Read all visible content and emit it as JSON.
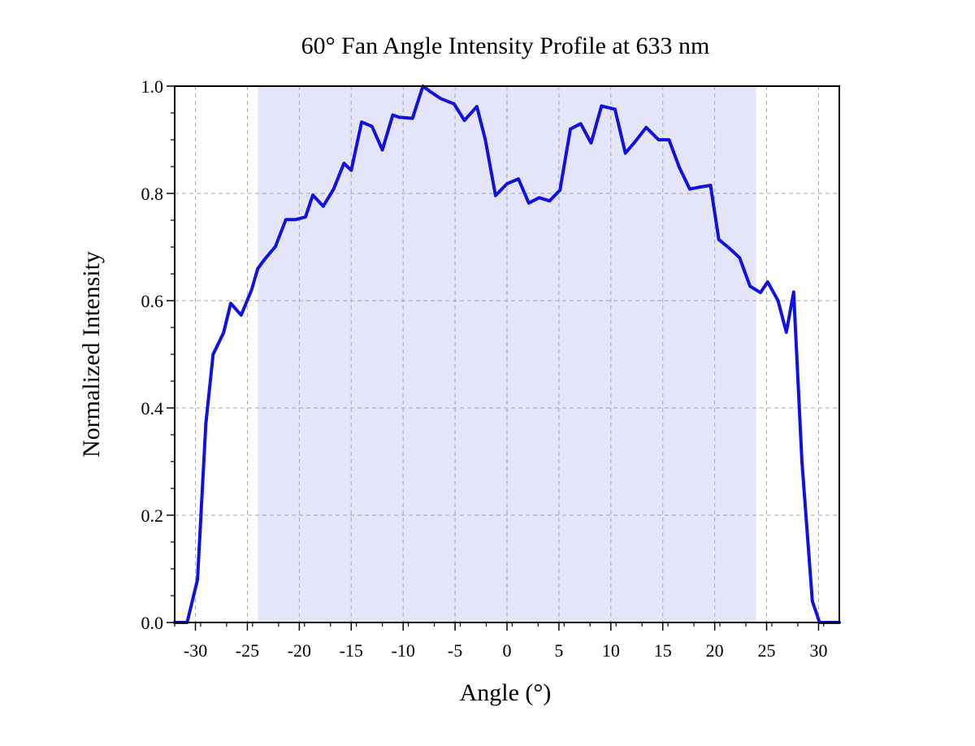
{
  "chart_data": {
    "type": "line",
    "title": "60° Fan Angle Intensity Profile at 633 nm",
    "xlabel": "Angle (°)",
    "ylabel": "Normalized Intensity",
    "xlim": [
      -32,
      32
    ],
    "ylim": [
      0,
      1.0
    ],
    "x_ticks": [
      -30,
      -25,
      -20,
      -15,
      -10,
      -5,
      0,
      5,
      10,
      15,
      20,
      25,
      30
    ],
    "y_ticks": [
      0.0,
      0.2,
      0.4,
      0.6,
      0.8,
      1.0
    ],
    "x_tick_labels": [
      "-30",
      "-25",
      "-20",
      "-15",
      "-10",
      "-5",
      "0",
      "5",
      "10",
      "15",
      "20",
      "25",
      "30"
    ],
    "y_tick_labels": [
      "0.0",
      "0.2",
      "0.4",
      "0.6",
      "0.8",
      "1.0"
    ],
    "grid": true,
    "shaded_region": {
      "x_start": -24,
      "x_end": 24,
      "color": "#e5e5fa"
    },
    "series": [
      {
        "color": "#1010e0",
        "x": [
          -32,
          -30.8,
          -29.8,
          -29,
          -28.3,
          -27.3,
          -26.6,
          -25.6,
          -24.6,
          -24,
          -23.3,
          -22.3,
          -21.3,
          -20.4,
          -19.4,
          -18.7,
          -17.7,
          -16.7,
          -15.7,
          -15,
          -14,
          -13,
          -12,
          -11,
          -10.4,
          -9.1,
          -8.1,
          -7.4,
          -6.4,
          -5.1,
          -4.1,
          -2.9,
          -2.1,
          -1.1,
          0,
          1.1,
          2.1,
          3.1,
          4.1,
          5.1,
          6.1,
          7.1,
          8.1,
          9.1,
          10.4,
          11.4,
          12.4,
          13.4,
          14.6,
          15.6,
          16.6,
          17.6,
          18.6,
          19.6,
          20.4,
          21.4,
          22.4,
          23.4,
          24.4,
          25.1,
          26.1,
          26.9,
          27.6,
          28.4,
          29.4,
          30.1,
          30.9,
          32
        ],
        "y": [
          0,
          0,
          0.08,
          0.37,
          0.5,
          0.54,
          0.595,
          0.573,
          0.62,
          0.66,
          0.678,
          0.701,
          0.751,
          0.751,
          0.756,
          0.797,
          0.776,
          0.808,
          0.856,
          0.843,
          0.933,
          0.925,
          0.881,
          0.946,
          0.942,
          0.94,
          1.0,
          0.99,
          0.977,
          0.967,
          0.936,
          0.962,
          0.901,
          0.796,
          0.818,
          0.827,
          0.782,
          0.792,
          0.786,
          0.806,
          0.92,
          0.93,
          0.894,
          0.963,
          0.957,
          0.875,
          0.898,
          0.923,
          0.9,
          0.9,
          0.848,
          0.808,
          0.812,
          0.815,
          0.714,
          0.698,
          0.68,
          0.627,
          0.615,
          0.635,
          0.6,
          0.541,
          0.616,
          0.3,
          0.04,
          0,
          0,
          0
        ]
      }
    ]
  }
}
